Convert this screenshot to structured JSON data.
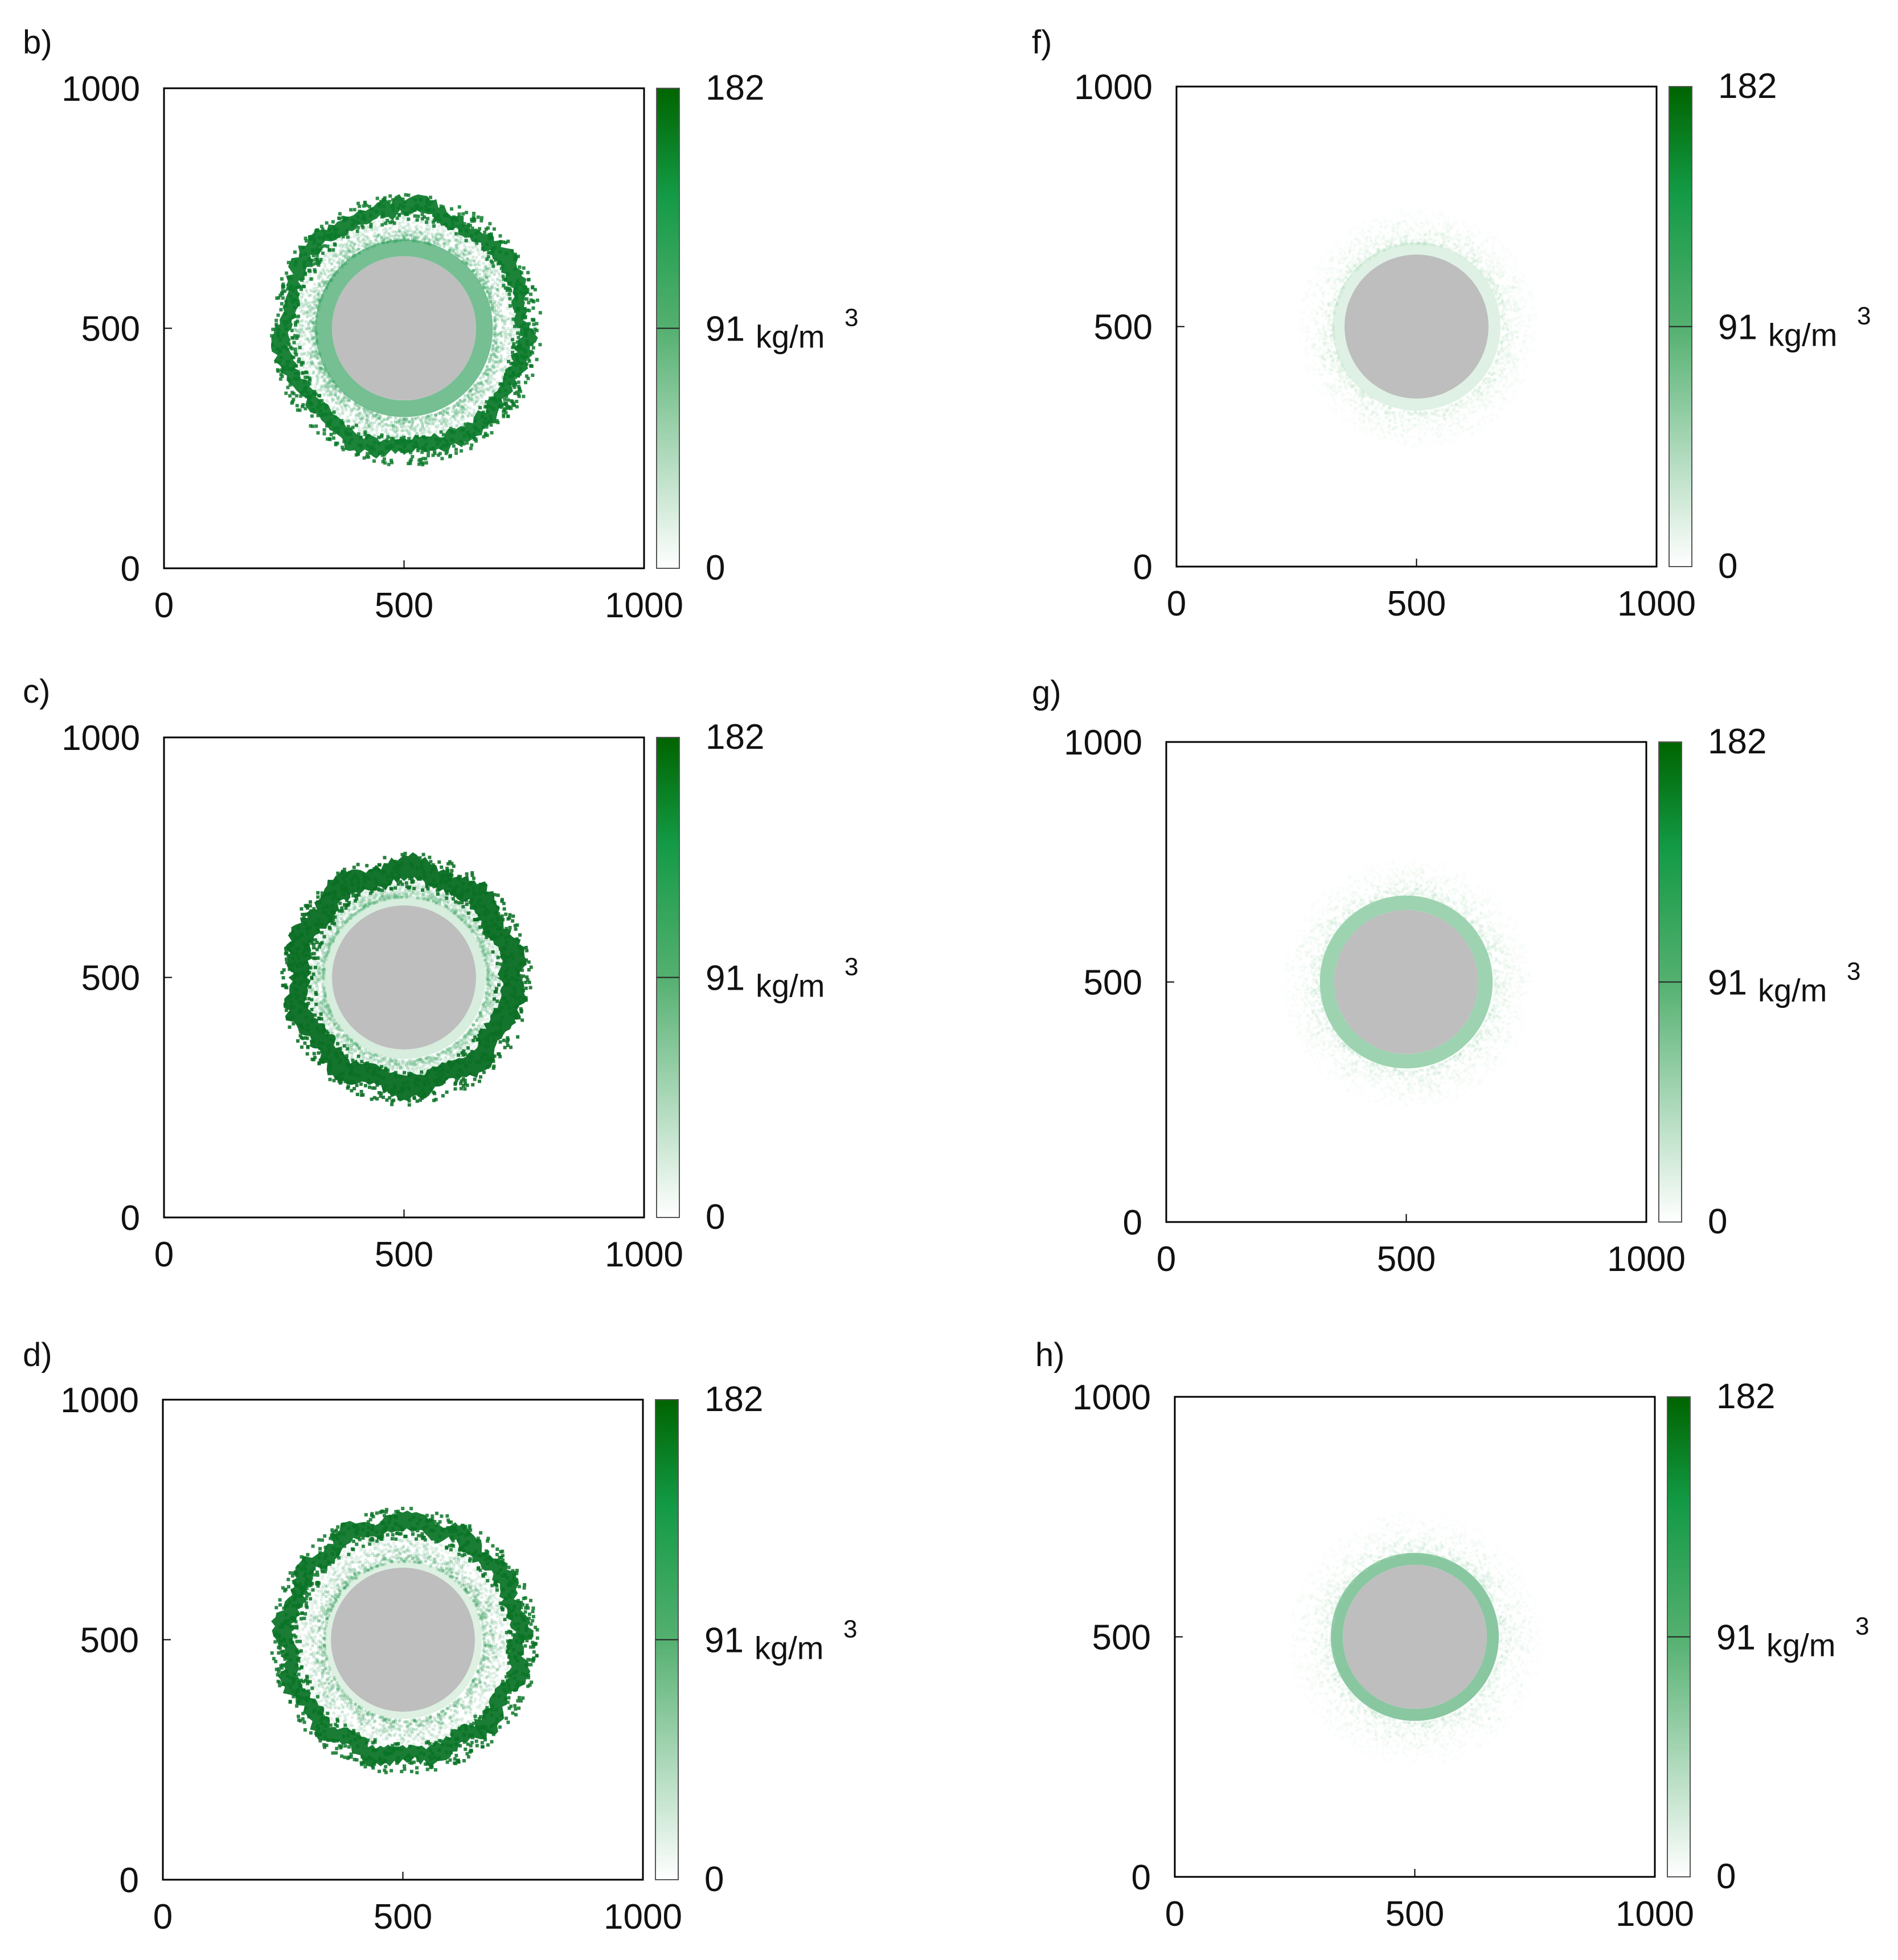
{
  "figure": {
    "colors": {
      "dark_green": "#006400",
      "mid_green": "#1a9850",
      "light_green": "#8fcf9f",
      "core_gray": "#bebebe",
      "frame": "#000000"
    }
  },
  "chart_data": [
    {
      "type": "heatmap",
      "panel_label": "b)",
      "x_ticks": [
        "0",
        "500",
        "1000"
      ],
      "y_ticks": [
        "0",
        "500",
        "1000"
      ],
      "xlim": [
        0,
        1000
      ],
      "ylim": [
        0,
        1000
      ],
      "colorbar": {
        "min": "0",
        "mid": "91",
        "max": "182",
        "unit_base": "kg/m",
        "unit_exp": "3"
      },
      "core": {
        "cx": 500,
        "cy": 500,
        "r": 150
      },
      "rings": [
        {
          "r_inner": 150,
          "r_outer": 185,
          "density": 120,
          "color": "#2e9e5b",
          "style": "solid"
        },
        {
          "r_inner": 185,
          "r_outer": 250,
          "density": 60,
          "color": "#3aa665",
          "style": "speckle"
        },
        {
          "r_inner": 235,
          "r_outer": 265,
          "density": 170,
          "color": "#0b7a2a",
          "style": "rough"
        }
      ]
    },
    {
      "type": "heatmap",
      "panel_label": "c)",
      "x_ticks": [
        "0",
        "500",
        "1000"
      ],
      "y_ticks": [
        "0",
        "500",
        "1000"
      ],
      "xlim": [
        0,
        1000
      ],
      "ylim": [
        0,
        1000
      ],
      "colorbar": {
        "min": "0",
        "mid": "91",
        "max": "182",
        "unit_base": "kg/m",
        "unit_exp": "3"
      },
      "core": {
        "cx": 500,
        "cy": 500,
        "r": 150
      },
      "rings": [
        {
          "r_inner": 150,
          "r_outer": 170,
          "density": 60,
          "color": "#86c99a",
          "style": "solid"
        },
        {
          "r_inner": 170,
          "r_outer": 210,
          "density": 50,
          "color": "#4fae72",
          "style": "speckle"
        },
        {
          "r_inner": 200,
          "r_outer": 245,
          "density": 175,
          "color": "#0a6e24",
          "style": "rough"
        }
      ]
    },
    {
      "type": "heatmap",
      "panel_label": "d)",
      "x_ticks": [
        "0",
        "500",
        "1000"
      ],
      "y_ticks": [
        "0",
        "500",
        "1000"
      ],
      "xlim": [
        0,
        1000
      ],
      "ylim": [
        0,
        1000
      ],
      "colorbar": {
        "min": "0",
        "mid": "91",
        "max": "182",
        "unit_base": "kg/m",
        "unit_exp": "3"
      },
      "core": {
        "cx": 500,
        "cy": 500,
        "r": 150
      },
      "rings": [
        {
          "r_inner": 150,
          "r_outer": 165,
          "density": 55,
          "color": "#8dcc9e",
          "style": "solid"
        },
        {
          "r_inner": 165,
          "r_outer": 235,
          "density": 45,
          "color": "#2f9b57",
          "style": "speckle"
        },
        {
          "r_inner": 225,
          "r_outer": 260,
          "density": 170,
          "color": "#0a7326",
          "style": "rough"
        }
      ]
    },
    {
      "type": "heatmap",
      "panel_label": "f)",
      "x_ticks": [
        "0",
        "500",
        "1000"
      ],
      "y_ticks": [
        "0",
        "500",
        "1000"
      ],
      "xlim": [
        0,
        1000
      ],
      "ylim": [
        0,
        1000
      ],
      "colorbar": {
        "min": "0",
        "mid": "91",
        "max": "182",
        "unit_base": "kg/m",
        "unit_exp": "3"
      },
      "core": {
        "cx": 500,
        "cy": 500,
        "r": 150
      },
      "rings": [
        {
          "r_inner": 150,
          "r_outer": 175,
          "density": 55,
          "color": "#94d1a4",
          "style": "solid"
        },
        {
          "r_inner": 175,
          "r_outer": 250,
          "density": 25,
          "color": "#a9dbb5",
          "style": "speckle"
        }
      ]
    },
    {
      "type": "heatmap",
      "panel_label": "g)",
      "x_ticks": [
        "0",
        "500",
        "1000"
      ],
      "y_ticks": [
        "0",
        "500",
        "1000"
      ],
      "xlim": [
        0,
        1000
      ],
      "ylim": [
        0,
        1000
      ],
      "colorbar": {
        "min": "0",
        "mid": "91",
        "max": "182",
        "unit_base": "kg/m",
        "unit_exp": "3"
      },
      "core": {
        "cx": 500,
        "cy": 500,
        "r": 150
      },
      "rings": [
        {
          "r_inner": 150,
          "r_outer": 180,
          "density": 100,
          "color": "#4daf70",
          "style": "solid"
        },
        {
          "r_inner": 180,
          "r_outer": 260,
          "density": 25,
          "color": "#a6d9b2",
          "style": "speckle"
        }
      ]
    },
    {
      "type": "heatmap",
      "panel_label": "h)",
      "x_ticks": [
        "0",
        "500",
        "1000"
      ],
      "y_ticks": [
        "0",
        "500",
        "1000"
      ],
      "xlim": [
        0,
        1000
      ],
      "ylim": [
        0,
        1000
      ],
      "colorbar": {
        "min": "0",
        "mid": "91",
        "max": "182",
        "unit_base": "kg/m",
        "unit_exp": "3"
      },
      "core": {
        "cx": 500,
        "cy": 500,
        "r": 150
      },
      "rings": [
        {
          "r_inner": 150,
          "r_outer": 175,
          "density": 110,
          "color": "#3aa263",
          "style": "solid"
        },
        {
          "r_inner": 175,
          "r_outer": 265,
          "density": 25,
          "color": "#a6d9b2",
          "style": "speckle"
        }
      ]
    }
  ]
}
